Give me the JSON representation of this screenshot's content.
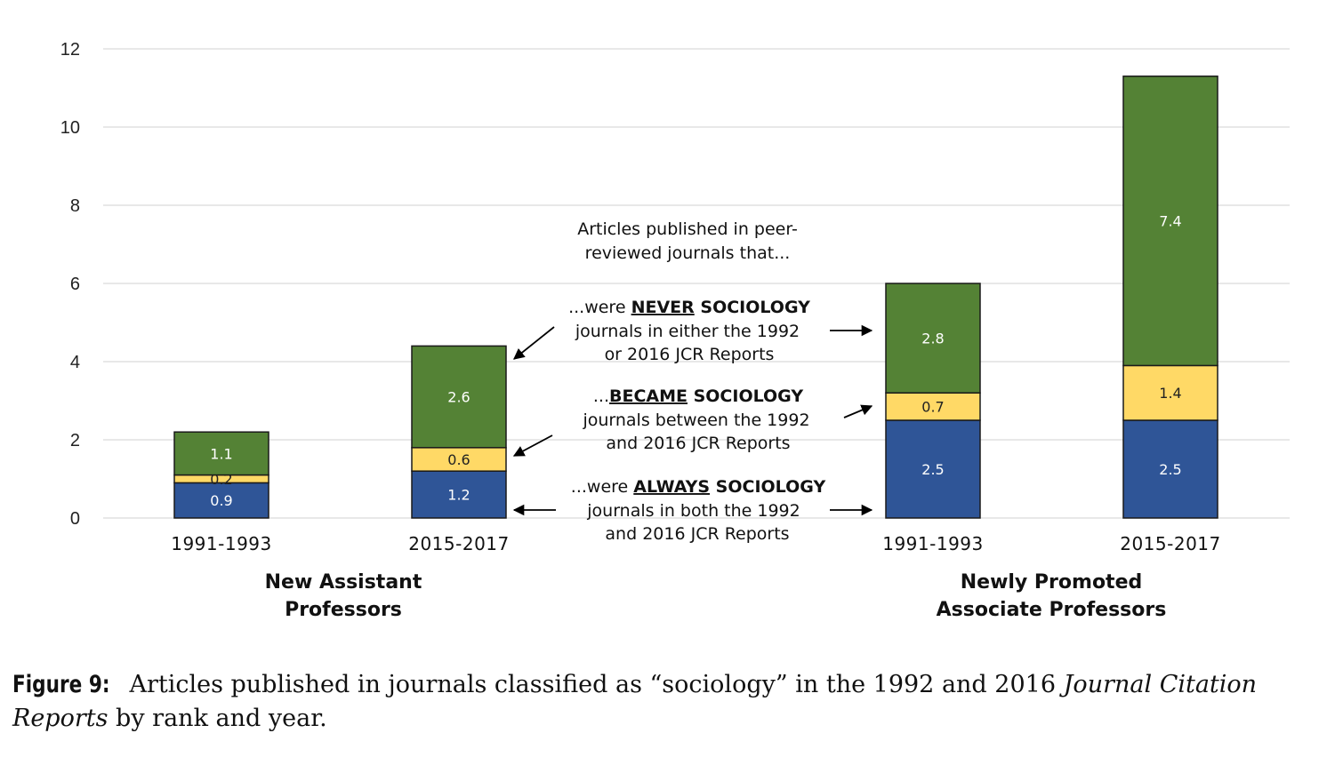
{
  "chart_data": {
    "type": "bar",
    "stacked": true,
    "groups": [
      {
        "name": "New Assistant Professors",
        "line1": "New Assistant",
        "line2": "Professors",
        "categories": [
          "1991-1993",
          "2015-2017"
        ]
      },
      {
        "name": "Newly Promoted Associate Professors",
        "line1": "Newly Promoted",
        "line2": "Associate Professors",
        "categories": [
          "1991-1993",
          "2015-2017"
        ]
      }
    ],
    "categories": [
      "1991-1993",
      "2015-2017",
      "1991-1993",
      "2015-2017"
    ],
    "series": [
      {
        "key": "always",
        "values": [
          0.9,
          1.2,
          2.5,
          2.5
        ],
        "labels": [
          "0.9",
          "1.2",
          "2.5",
          "2.5"
        ],
        "color": "#2F5597"
      },
      {
        "key": "became",
        "values": [
          0.2,
          0.6,
          0.7,
          1.4
        ],
        "labels": [
          "0.2",
          "0.6",
          "0.7",
          "1.4"
        ],
        "color": "#FFD966"
      },
      {
        "key": "never",
        "values": [
          1.1,
          2.6,
          2.8,
          7.4
        ],
        "labels": [
          "1.1",
          "2.6",
          "2.8",
          "7.4"
        ],
        "color": "#548235"
      }
    ],
    "yticks": [
      "0",
      "2",
      "4",
      "6",
      "8",
      "10",
      "12"
    ],
    "ylim": [
      0,
      12
    ],
    "grid": true,
    "legend": "annotations-center",
    "annotations": {
      "header": {
        "line1": "Articles published in peer-",
        "line2": "reviewed journals that..."
      },
      "never": {
        "pre": "...were ",
        "key": "NEVER",
        "post": " SOCIOLOGY",
        "line2": "journals in either the 1992",
        "line3": "or 2016 JCR Reports"
      },
      "became": {
        "pre": "...",
        "key": "BECAME",
        "post": " SOCIOLOGY",
        "line2": "journals between the 1992",
        "line3": "and 2016 JCR Reports"
      },
      "always": {
        "pre": "...were ",
        "key": "ALWAYS",
        "post": " SOCIOLOGY",
        "line2": "journals in both the 1992",
        "line3": "and 2016 JCR Reports"
      }
    }
  },
  "caption": {
    "label": "Figure 9:",
    "text": " Articles published in journals classified as “sociology” in the 1992 and 2016 ",
    "italic": "Journal Citation Reports",
    "text2": " by rank and year."
  }
}
